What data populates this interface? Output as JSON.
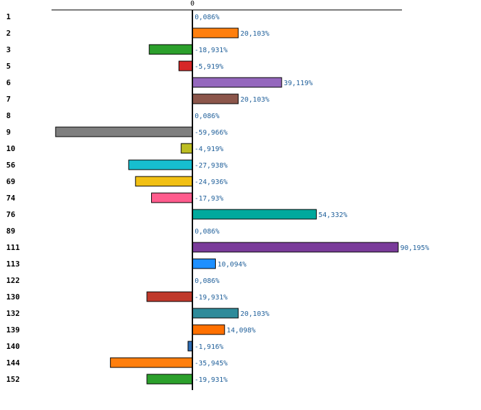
{
  "chart_data": {
    "type": "bar",
    "orientation": "horizontal",
    "title": "",
    "xlabel": "",
    "ylabel": "",
    "xlim": [
      -68,
      101
    ],
    "zero_tick_label": "0",
    "grid": false,
    "legend": "none",
    "categories": [
      "1",
      "2",
      "3",
      "5",
      "6",
      "7",
      "8",
      "9",
      "10",
      "56",
      "69",
      "74",
      "76",
      "89",
      "111",
      "113",
      "122",
      "130",
      "132",
      "139",
      "140",
      "144",
      "152"
    ],
    "values": [
      0.086,
      20.103,
      -18.931,
      -5.919,
      39.119,
      20.103,
      0.086,
      -59.966,
      -4.919,
      -27.938,
      -24.936,
      -17.93,
      54.332,
      0.086,
      90.195,
      10.094,
      0.086,
      -19.931,
      20.103,
      14.098,
      -1.916,
      -35.945,
      -19.931
    ],
    "value_labels": [
      "0,086%",
      "20,103%",
      "-18,931%",
      "-5,919%",
      "39,119%",
      "20,103%",
      "0,086%",
      "-59,966%",
      "-4,919%",
      "-27,938%",
      "-24,936%",
      "-17,93%",
      "54,332%",
      "0,086%",
      "90,195%",
      "10,094%",
      "0,086%",
      "-19,931%",
      "20,103%",
      "14,098%",
      "-1,916%",
      "-35,945%",
      "-19,931%"
    ],
    "colors": [
      "#1f77b4",
      "#ff7f0e",
      "#2ca02c",
      "#d62728",
      "#9467bd",
      "#8c564b",
      "#e377c2",
      "#7f7f7f",
      "#bcbd22",
      "#17becf",
      "#f2c014",
      "#ff5c8d",
      "#00a99d",
      "#3d5aa8",
      "#7a3b9a",
      "#1e90ff",
      "#2e9e4f",
      "#c0392b",
      "#2e8b9a",
      "#ff7000",
      "#2e6db4",
      "#ff7f0e",
      "#2ca02c"
    ]
  }
}
